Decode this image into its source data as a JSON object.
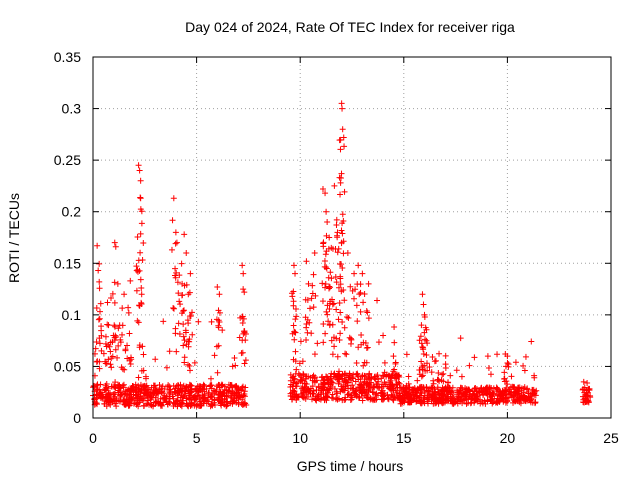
{
  "chart_data": {
    "type": "scatter",
    "title": "Day 024 of 2024, Rate Of TEC Index for receiver riga",
    "xlabel": "GPS time / hours",
    "ylabel": "ROTI / TECUs",
    "xlim": [
      0,
      25
    ],
    "ylim": [
      0,
      0.35
    ],
    "x_ticks": [
      0,
      5,
      10,
      15,
      20,
      25
    ],
    "x_tick_labels": [
      "0",
      "5",
      "10",
      "15",
      "20",
      "25"
    ],
    "y_ticks": [
      0,
      0.05,
      0.1,
      0.15,
      0.2,
      0.25,
      0.3,
      0.35
    ],
    "y_tick_labels": [
      "0",
      "0.05",
      "0.1",
      "0.15",
      "0.2",
      "0.25",
      "0.3",
      "0.35"
    ],
    "grid": true,
    "marker": "+",
    "color": "#ff0000",
    "series": [
      {
        "name": "ROTI",
        "segments": [
          {
            "x_start": 0.0,
            "x_end": 7.4,
            "baseline": 0.022,
            "spread": 0.018
          },
          {
            "x_start": 9.5,
            "x_end": 14.8,
            "baseline": 0.03,
            "spread": 0.022
          },
          {
            "x_start": 14.8,
            "x_end": 21.4,
            "baseline": 0.022,
            "spread": 0.014
          },
          {
            "x_start": 23.6,
            "x_end": 24.0,
            "baseline": 0.022,
            "spread": 0.012
          }
        ],
        "peaks": [
          {
            "x": 0.2,
            "y": 0.167
          },
          {
            "x": 0.25,
            "y": 0.143
          },
          {
            "x": 0.3,
            "y": 0.132
          },
          {
            "x": 0.7,
            "y": 0.112
          },
          {
            "x": 0.75,
            "y": 0.09
          },
          {
            "x": 1.05,
            "y": 0.17
          },
          {
            "x": 1.1,
            "y": 0.166
          },
          {
            "x": 1.2,
            "y": 0.13
          },
          {
            "x": 1.5,
            "y": 0.12
          },
          {
            "x": 1.8,
            "y": 0.133
          },
          {
            "x": 2.2,
            "y": 0.245
          },
          {
            "x": 2.25,
            "y": 0.24
          },
          {
            "x": 2.3,
            "y": 0.23
          },
          {
            "x": 2.3,
            "y": 0.213
          },
          {
            "x": 2.35,
            "y": 0.12
          },
          {
            "x": 3.9,
            "y": 0.213
          },
          {
            "x": 4.0,
            "y": 0.18
          },
          {
            "x": 4.05,
            "y": 0.17
          },
          {
            "x": 4.4,
            "y": 0.178
          },
          {
            "x": 4.5,
            "y": 0.16
          },
          {
            "x": 4.3,
            "y": 0.13
          },
          {
            "x": 4.7,
            "y": 0.14
          },
          {
            "x": 4.6,
            "y": 0.12
          },
          {
            "x": 6.0,
            "y": 0.127
          },
          {
            "x": 6.1,
            "y": 0.12
          },
          {
            "x": 7.2,
            "y": 0.148
          },
          {
            "x": 7.25,
            "y": 0.14
          },
          {
            "x": 7.3,
            "y": 0.122
          },
          {
            "x": 9.7,
            "y": 0.148
          },
          {
            "x": 9.75,
            "y": 0.14
          },
          {
            "x": 10.3,
            "y": 0.152
          },
          {
            "x": 10.4,
            "y": 0.13
          },
          {
            "x": 10.7,
            "y": 0.16
          },
          {
            "x": 11.1,
            "y": 0.222
          },
          {
            "x": 11.2,
            "y": 0.218
          },
          {
            "x": 11.25,
            "y": 0.2
          },
          {
            "x": 11.3,
            "y": 0.19
          },
          {
            "x": 11.4,
            "y": 0.175
          },
          {
            "x": 11.5,
            "y": 0.165
          },
          {
            "x": 11.65,
            "y": 0.225
          },
          {
            "x": 11.8,
            "y": 0.18
          },
          {
            "x": 11.9,
            "y": 0.233
          },
          {
            "x": 11.95,
            "y": 0.228
          },
          {
            "x": 12.0,
            "y": 0.305
          },
          {
            "x": 12.02,
            "y": 0.3
          },
          {
            "x": 12.05,
            "y": 0.28
          },
          {
            "x": 12.0,
            "y": 0.17
          },
          {
            "x": 12.3,
            "y": 0.16
          },
          {
            "x": 12.6,
            "y": 0.14
          },
          {
            "x": 12.8,
            "y": 0.148
          },
          {
            "x": 13.0,
            "y": 0.14
          },
          {
            "x": 13.3,
            "y": 0.13
          },
          {
            "x": 14.0,
            "y": 0.08
          },
          {
            "x": 14.5,
            "y": 0.06
          },
          {
            "x": 15.9,
            "y": 0.12
          },
          {
            "x": 15.95,
            "y": 0.11
          },
          {
            "x": 16.0,
            "y": 0.1
          },
          {
            "x": 15.85,
            "y": 0.09
          },
          {
            "x": 16.5,
            "y": 0.055
          },
          {
            "x": 19.9,
            "y": 0.062
          },
          {
            "x": 20.0,
            "y": 0.06
          }
        ]
      }
    ]
  }
}
